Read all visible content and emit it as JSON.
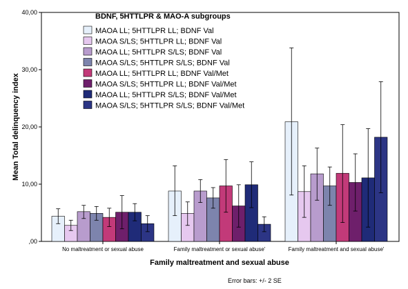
{
  "chart_data": {
    "type": "bar",
    "title": "",
    "xlabel": "Family maltreatment and sexual abuse",
    "ylabel": "Mean Total delinquency index",
    "ylim": [
      0,
      40
    ],
    "yticks": [
      "40,00",
      "30,00",
      "20,00",
      "10,00",
      ",00"
    ],
    "ytick_values": [
      40,
      30,
      20,
      10,
      0
    ],
    "categories": [
      "No maltreatment or sexual abuse",
      "Family maltreatment or sexual abuse'",
      "Family maltreatment and sexual abuse'"
    ],
    "legend_title": "BDNF, 5HTTLPR & MAO-A subgroups",
    "legend_position": "top-left",
    "grid": false,
    "footnote": "Error bars: +/- 2 SE",
    "series": [
      {
        "name": "MAOA LL; 5HTTLPR LL; BDNF Val",
        "color": "#e6f0fb",
        "values": [
          4.4,
          8.8,
          20.9
        ],
        "err_low": [
          3.1,
          4.5,
          8.1
        ],
        "err_high": [
          5.7,
          13.2,
          33.8
        ]
      },
      {
        "name": "MAOA S/LS; 5HTTLPR LL; BDNF Val",
        "color": "#e6c8ef",
        "values": [
          2.8,
          4.9,
          8.7
        ],
        "err_low": [
          1.9,
          2.8,
          4.2
        ],
        "err_high": [
          3.7,
          6.9,
          13.2
        ]
      },
      {
        "name": "MAOA LL; 5HTTLPR S/LS; BDNF Val",
        "color": "#b89ccd",
        "values": [
          5.2,
          8.8,
          11.8
        ],
        "err_low": [
          4.0,
          6.8,
          7.2
        ],
        "err_high": [
          6.3,
          10.8,
          16.3
        ]
      },
      {
        "name": "MAOA S/LS; 5HTTLPR S/LS; BDNF Val",
        "color": "#7d84ad",
        "values": [
          4.9,
          7.6,
          9.7
        ],
        "err_low": [
          3.7,
          5.8,
          6.3
        ],
        "err_high": [
          6.1,
          9.4,
          13.0
        ]
      },
      {
        "name": "MAOA LL; 5HTTLPR LL; BDNF Val/Met",
        "color": "#c23a79",
        "values": [
          4.2,
          9.7,
          11.9
        ],
        "err_low": [
          2.6,
          5.1,
          3.3
        ],
        "err_high": [
          5.8,
          14.3,
          20.4
        ]
      },
      {
        "name": "MAOA S/LS; 5HTTLPR LL; BDNF Val/Met",
        "color": "#6e1f6b",
        "values": [
          5.1,
          6.2,
          10.3
        ],
        "err_low": [
          2.2,
          2.5,
          5.3
        ],
        "err_high": [
          8.0,
          9.9,
          15.3
        ]
      },
      {
        "name": "MAOA LL; 5HTTLPR S/LS; BDNF Val/Met",
        "color": "#1f2b78",
        "values": [
          5.1,
          9.9,
          11.1
        ],
        "err_low": [
          3.6,
          5.9,
          2.5
        ],
        "err_high": [
          6.6,
          13.9,
          19.7
        ]
      },
      {
        "name": "MAOA S/LS; 5HTTLPR S/LS; BDNF Val/Met",
        "color": "#2c3585",
        "values": [
          3.1,
          3.0,
          18.2
        ],
        "err_low": [
          1.7,
          1.7,
          8.5
        ],
        "err_high": [
          4.5,
          4.3,
          27.9
        ]
      }
    ]
  }
}
